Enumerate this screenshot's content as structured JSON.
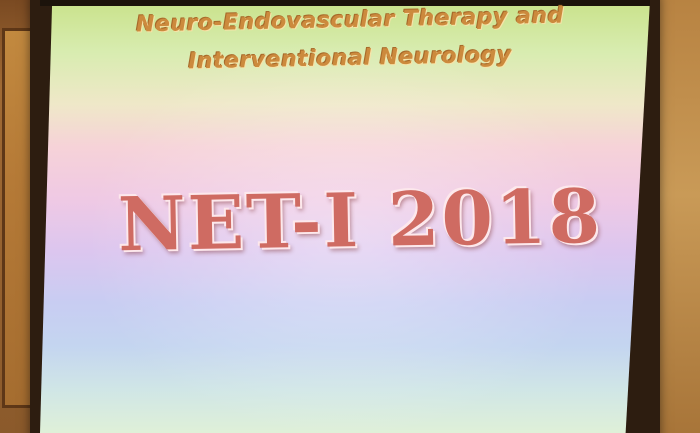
{
  "slide": {
    "subtitle_line1": "Neuro-Endovascular Therapy and",
    "subtitle_line2": "Interventional Neurology",
    "headline": "NET-I 2018"
  },
  "colors": {
    "subtitle": "#cc8a3d",
    "headline": "#cf6b62",
    "wall": "#b98445"
  }
}
